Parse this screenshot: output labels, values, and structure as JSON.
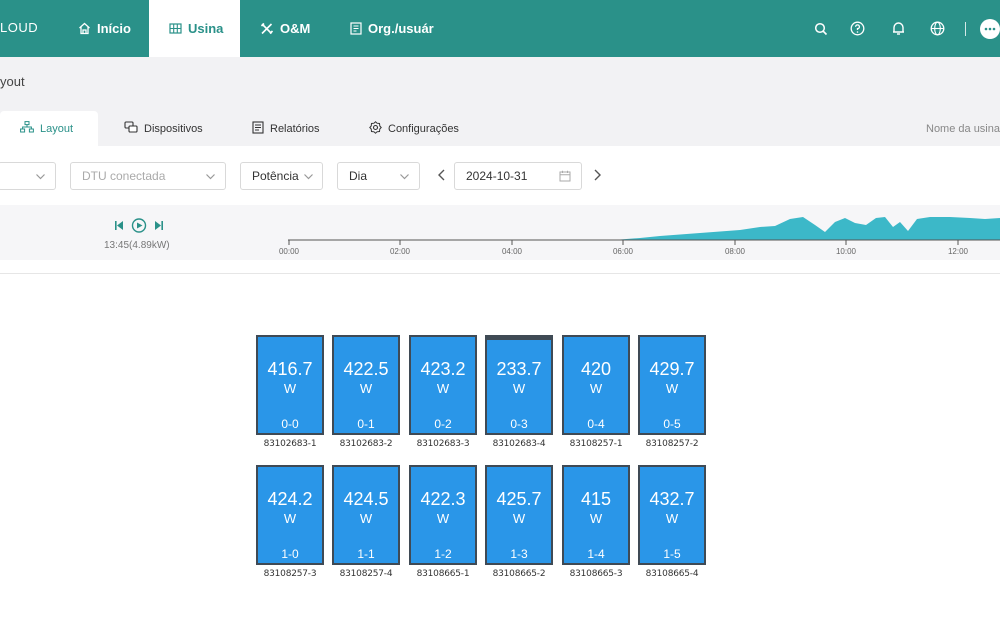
{
  "topnav": {
    "brand": "LOUD",
    "items": [
      {
        "label": "Início",
        "icon": "home-icon"
      },
      {
        "label": "Usina",
        "icon": "grid-icon",
        "active": true
      },
      {
        "label": "O&M",
        "icon": "tools-icon"
      },
      {
        "label": "Org./usuár",
        "icon": "org-icon"
      }
    ],
    "right_icons": [
      "search-icon",
      "help-icon",
      "bell-icon",
      "globe-icon",
      "chat-icon"
    ],
    "accent_color": "#2a9189"
  },
  "breadcrumb": "yout",
  "tabs": [
    {
      "label": "Layout",
      "icon": "layout-icon",
      "active": true
    },
    {
      "label": "Dispositivos",
      "icon": "devices-icon"
    },
    {
      "label": "Relatórios",
      "icon": "report-icon"
    },
    {
      "label": "Configurações",
      "icon": "settings-icon"
    }
  ],
  "plant_name_label": "Nome da usina",
  "filters": {
    "dtu_placeholder": "DTU conectada",
    "metric": "Potência",
    "period": "Dia",
    "date": "2024-10-31"
  },
  "timeline": {
    "current": "13:45(4.89kW)",
    "ticks": [
      "00:00",
      "02:00",
      "04:00",
      "06:00",
      "08:00",
      "10:00",
      "12:00"
    ]
  },
  "panels": [
    {
      "power": "416.7",
      "unit": "W",
      "position": "0-0",
      "serial": "83102683-1"
    },
    {
      "power": "422.5",
      "unit": "W",
      "position": "0-1",
      "serial": "83102683-2"
    },
    {
      "power": "423.2",
      "unit": "W",
      "position": "0-2",
      "serial": "83102683-3"
    },
    {
      "power": "233.7",
      "unit": "W",
      "position": "0-3",
      "serial": "83102683-4"
    },
    {
      "power": "420",
      "unit": "W",
      "position": "0-4",
      "serial": "83108257-1"
    },
    {
      "power": "429.7",
      "unit": "W",
      "position": "0-5",
      "serial": "83108257-2"
    },
    {
      "power": "424.2",
      "unit": "W",
      "position": "1-0",
      "serial": "83108257-3"
    },
    {
      "power": "424.5",
      "unit": "W",
      "position": "1-1",
      "serial": "83108257-4"
    },
    {
      "power": "422.3",
      "unit": "W",
      "position": "1-2",
      "serial": "83108665-1"
    },
    {
      "power": "425.7",
      "unit": "W",
      "position": "1-3",
      "serial": "83108665-2"
    },
    {
      "power": "415",
      "unit": "W",
      "position": "1-4",
      "serial": "83108665-3"
    },
    {
      "power": "432.7",
      "unit": "W",
      "position": "1-5",
      "serial": "83108665-4"
    }
  ],
  "colors": {
    "panel_fill": "#2a96e8",
    "panel_border": "#3f4a55",
    "chart_fill": "#3cb8c8"
  }
}
